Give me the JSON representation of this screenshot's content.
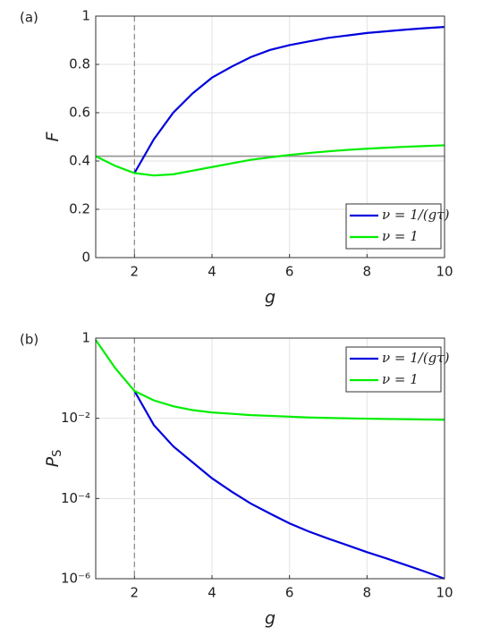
{
  "chart_data": [
    {
      "type": "line",
      "label": "(a)",
      "xlabel": "g",
      "ylabel": "F",
      "x": [
        1,
        1.5,
        2,
        2.5,
        3,
        3.5,
        4,
        4.5,
        5,
        5.5,
        6,
        6.5,
        7,
        7.5,
        8,
        8.5,
        9,
        9.5,
        10
      ],
      "series": [
        {
          "name": "ν = 1/(gτ)",
          "color": "#0000dd",
          "values": [
            null,
            null,
            0.35,
            0.49,
            0.6,
            0.68,
            0.745,
            0.79,
            0.83,
            0.86,
            0.88,
            0.895,
            0.91,
            0.92,
            0.93,
            0.937,
            0.944,
            0.95,
            0.955
          ]
        },
        {
          "name": "ν = 1",
          "color": "#00ee00",
          "values": [
            0.42,
            0.38,
            0.35,
            0.34,
            0.345,
            0.36,
            0.375,
            0.39,
            0.405,
            0.415,
            0.425,
            0.433,
            0.44,
            0.446,
            0.451,
            0.455,
            0.459,
            0.462,
            0.465
          ]
        }
      ],
      "hline": 0.42,
      "hline_color": "#999999",
      "vline": 2,
      "xlim": [
        1,
        10
      ],
      "xticks": [
        2,
        4,
        6,
        8,
        10
      ],
      "ylim": [
        0,
        1
      ],
      "yticks": [
        0,
        0.2,
        0.4,
        0.6,
        0.8,
        1
      ],
      "log_y": false,
      "grid": true,
      "legend": "lower right"
    },
    {
      "type": "line",
      "label": "(b)",
      "xlabel": "g",
      "ylabel": "P",
      "ylabel_sub": "S",
      "x": [
        1,
        1.5,
        2,
        2.5,
        3,
        3.5,
        4,
        4.5,
        5,
        5.5,
        6,
        6.5,
        7,
        7.5,
        8,
        8.5,
        9,
        9.5,
        10
      ],
      "series": [
        {
          "name": "ν = 1/(gτ)",
          "color": "#0000dd",
          "values": [
            null,
            null,
            0.048,
            0.0068,
            0.002,
            0.0008,
            0.00032,
            0.00015,
            7.5e-05,
            4.2e-05,
            2.4e-05,
            1.5e-05,
            1e-05,
            6.8e-06,
            4.6e-06,
            3.2e-06,
            2.2e-06,
            1.5e-06,
            1e-06
          ]
        },
        {
          "name": "ν = 1",
          "color": "#00ee00",
          "values": [
            0.9,
            0.18,
            0.048,
            0.028,
            0.02,
            0.016,
            0.014,
            0.013,
            0.012,
            0.0115,
            0.011,
            0.0105,
            0.0102,
            0.01,
            0.0098,
            0.0096,
            0.0095,
            0.0093,
            0.0092
          ]
        }
      ],
      "vline": 2,
      "xlim": [
        1,
        10
      ],
      "xticks": [
        2,
        4,
        6,
        8,
        10
      ],
      "ylim": [
        1e-06,
        1
      ],
      "yticks": [
        {
          "value": 1e-06,
          "label": "10⁻⁶"
        },
        {
          "value": 0.0001,
          "label": "10⁻⁴"
        },
        {
          "value": 0.01,
          "label": "10⁻²"
        },
        1
      ],
      "log_y": true,
      "grid": true,
      "legend": "upper right"
    }
  ]
}
